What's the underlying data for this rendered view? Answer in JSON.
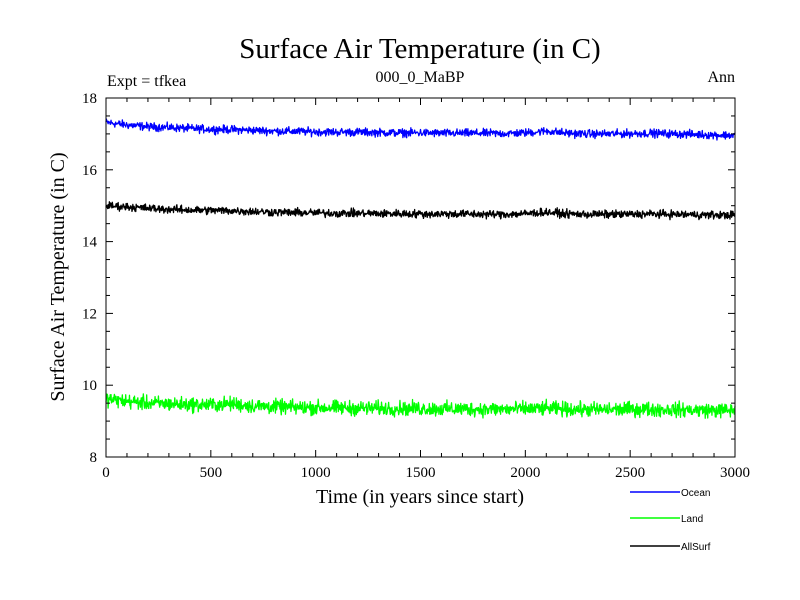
{
  "chart_data": {
    "type": "line",
    "title": "Surface Air Temperature (in C)",
    "subtitle_left": "Expt = tfkea",
    "subtitle_center": "000_0_MaBP",
    "subtitle_right": "Ann",
    "xlabel": "Time (in years since start)",
    "ylabel": "Surface Air Temperature (in C)",
    "xlim": [
      0,
      3000
    ],
    "ylim": [
      8,
      18
    ],
    "x_ticks": [
      0,
      500,
      1000,
      1500,
      2000,
      2500,
      3000
    ],
    "y_ticks": [
      8,
      10,
      12,
      14,
      16,
      18
    ],
    "grid": false,
    "legend_position": "bottom-right, below plot",
    "series": [
      {
        "name": "Ocean",
        "color": "#0000ff",
        "x": [
          0,
          100,
          200,
          300,
          400,
          500,
          600,
          700,
          800,
          900,
          1000,
          1100,
          1200,
          1300,
          1400,
          1500,
          1600,
          1700,
          1800,
          1900,
          2000,
          2100,
          2200,
          2300,
          2400,
          2500,
          2600,
          2700,
          2800,
          2900,
          3000
        ],
        "y": [
          17.32,
          17.25,
          17.2,
          17.18,
          17.15,
          17.13,
          17.12,
          17.1,
          17.08,
          17.07,
          17.06,
          17.05,
          17.05,
          17.04,
          17.03,
          17.03,
          17.02,
          17.02,
          17.02,
          17.01,
          17.03,
          17.08,
          17.02,
          17.0,
          17.0,
          17.01,
          17.02,
          17.0,
          16.99,
          16.97,
          16.96
        ],
        "noise_amplitude": 0.1
      },
      {
        "name": "Land",
        "color": "#00ff00",
        "x": [
          0,
          100,
          200,
          300,
          400,
          500,
          600,
          700,
          800,
          900,
          1000,
          1100,
          1200,
          1300,
          1400,
          1500,
          1600,
          1700,
          1800,
          1900,
          2000,
          2100,
          2200,
          2300,
          2400,
          2500,
          2600,
          2700,
          2800,
          2900,
          3000
        ],
        "y": [
          9.62,
          9.55,
          9.5,
          9.48,
          9.46,
          9.45,
          9.48,
          9.42,
          9.4,
          9.38,
          9.38,
          9.37,
          9.36,
          9.36,
          9.35,
          9.35,
          9.34,
          9.34,
          9.33,
          9.33,
          9.34,
          9.35,
          9.33,
          9.32,
          9.32,
          9.33,
          9.33,
          9.32,
          9.31,
          9.3,
          9.3
        ],
        "noise_amplitude": 0.18
      },
      {
        "name": "AllSurf",
        "color": "#000000",
        "x": [
          0,
          100,
          200,
          300,
          400,
          500,
          600,
          700,
          800,
          900,
          1000,
          1100,
          1200,
          1300,
          1400,
          1500,
          1600,
          1700,
          1800,
          1900,
          2000,
          2100,
          2200,
          2300,
          2400,
          2500,
          2600,
          2700,
          2800,
          2900,
          3000
        ],
        "y": [
          15.0,
          14.97,
          14.93,
          14.9,
          14.88,
          14.87,
          14.86,
          14.84,
          14.82,
          14.81,
          14.8,
          14.79,
          14.79,
          14.78,
          14.78,
          14.77,
          14.77,
          14.77,
          14.76,
          14.76,
          14.78,
          14.82,
          14.77,
          14.76,
          14.76,
          14.76,
          14.77,
          14.76,
          14.75,
          14.74,
          14.74
        ],
        "noise_amplitude": 0.1
      }
    ]
  }
}
